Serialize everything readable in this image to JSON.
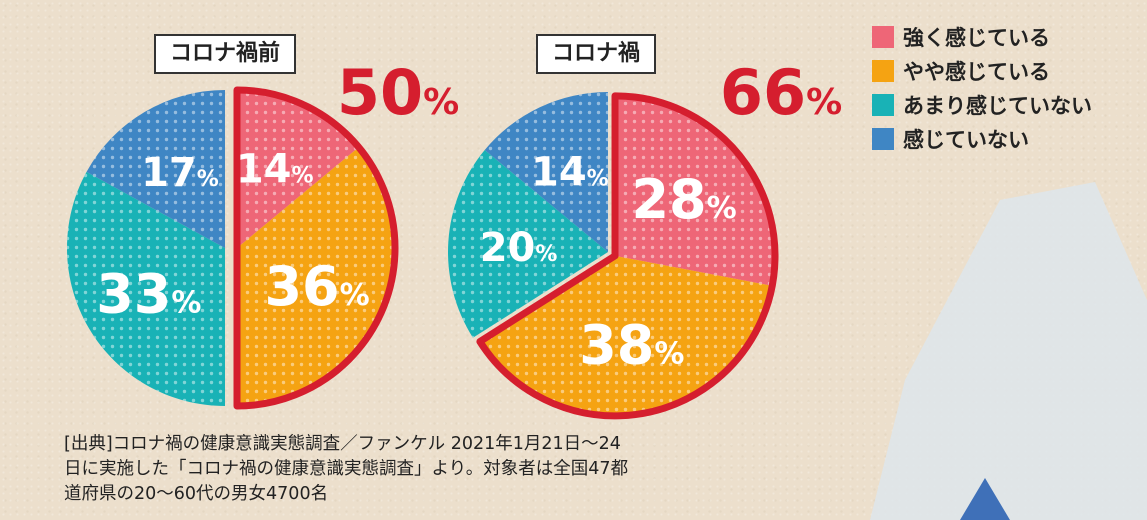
{
  "chart_data": [
    {
      "type": "pie",
      "title": "コロナ禍前",
      "categories": [
        "強く感じている",
        "やや感じている",
        "あまり感じていない",
        "感じていない"
      ],
      "values": [
        14,
        36,
        33,
        17
      ],
      "labels": [
        "14%",
        "36%",
        "33%",
        "17%"
      ],
      "highlight_label": "50%"
    },
    {
      "type": "pie",
      "title": "コロナ禍",
      "categories": [
        "強く感じている",
        "やや感じている",
        "あまり感じていない",
        "感じていない"
      ],
      "values": [
        28,
        38,
        20,
        14
      ],
      "labels": [
        "28%",
        "38%",
        "20%",
        "14%"
      ],
      "highlight_label": "66%"
    }
  ],
  "legend": [
    {
      "label": "強く感じている",
      "color": "#ee6677"
    },
    {
      "label": "やや感じている",
      "color": "#f5a312"
    },
    {
      "label": "あまり感じていない",
      "color": "#19b2b6"
    },
    {
      "label": "感じていない",
      "color": "#3f86c4"
    }
  ],
  "highlight_color": "#d51e2e",
  "source_lines": [
    "[出典]コロナ禍の健康意識実態調査／ファンケル 2021年1月21日〜24",
    "日に実施した「コロナ禍の健康意識実態調査」より。対象者は全国47都",
    "道府県の20〜60代の男女4700名"
  ]
}
